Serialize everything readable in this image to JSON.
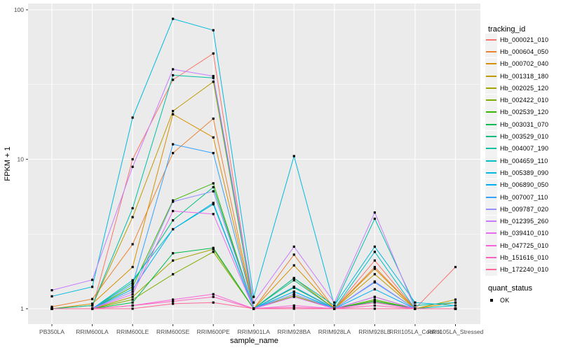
{
  "chart_data": {
    "type": "line",
    "title": "",
    "xlabel": "sample_name",
    "ylabel": "FPKM + 1",
    "y_scale": "log10",
    "ylim": [
      0.9,
      110
    ],
    "yticks": [
      1,
      10,
      100
    ],
    "ytick_labels": [
      "1",
      "10",
      "100"
    ],
    "grid": "white major+minor gridlines on gray panel",
    "legend_position": "right",
    "panel_bg": "#EBEBEB",
    "gridline_color": "#FFFFFF",
    "axis_text_color": "#4D4D4D",
    "point_marker": "black-square",
    "categories": [
      "PB350LA",
      "RRIM600LA",
      "RRIM600LE",
      "RRIM600SE",
      "RRIM600PE",
      "RRIM901LA",
      "RRIM928BA",
      "RRIM928LA",
      "RRIM928LB",
      "RRII105LA_Control",
      "RRII105LA_Stressed"
    ],
    "series": [
      {
        "name": "Hb_000021_010",
        "color": "#F8766D",
        "values": [
          1.0,
          1.0,
          10.0,
          34,
          51,
          1.0,
          1.6,
          1.0,
          2.1,
          1.0,
          1.9
        ]
      },
      {
        "name": "Hb_000604_050",
        "color": "#EA8331",
        "values": [
          1.03,
          1.16,
          2.7,
          11,
          18.7,
          1.0,
          2.3,
          1.0,
          1.9,
          1.0,
          1.0
        ]
      },
      {
        "name": "Hb_000702_040",
        "color": "#D89000",
        "values": [
          1.0,
          1.08,
          1.9,
          20,
          14,
          1.0,
          1.95,
          1.0,
          1.85,
          1.0,
          1.1
        ]
      },
      {
        "name": "Hb_001318_180",
        "color": "#C09B00",
        "values": [
          1.0,
          1.05,
          4.1,
          21,
          33,
          1.0,
          1.6,
          1.0,
          1.7,
          1.0,
          1.15
        ]
      },
      {
        "name": "Hb_002025_120",
        "color": "#A3A500",
        "values": [
          1.0,
          1.0,
          1.2,
          2.1,
          2.5,
          1.0,
          1.25,
          1.0,
          1.13,
          1.0,
          1.0
        ]
      },
      {
        "name": "Hb_002422_010",
        "color": "#7CAE00",
        "values": [
          1.0,
          1.0,
          1.15,
          1.7,
          2.4,
          1.0,
          1.22,
          1.0,
          1.1,
          1.0,
          1.0
        ]
      },
      {
        "name": "Hb_002539_120",
        "color": "#39B600",
        "values": [
          1.0,
          1.0,
          1.4,
          5.3,
          6.9,
          1.0,
          1.4,
          1.0,
          1.15,
          1.0,
          1.0
        ]
      },
      {
        "name": "Hb_003031_070",
        "color": "#00BB4E",
        "values": [
          1.0,
          1.0,
          1.1,
          2.35,
          2.55,
          1.0,
          1.38,
          1.0,
          1.12,
          1.0,
          1.0
        ]
      },
      {
        "name": "Hb_003529_010",
        "color": "#00BF7D",
        "values": [
          1.0,
          1.0,
          1.5,
          3.9,
          6.5,
          1.0,
          1.55,
          1.0,
          1.2,
          1.0,
          1.0
        ]
      },
      {
        "name": "Hb_004007_190",
        "color": "#00C1A3",
        "values": [
          1.0,
          1.05,
          4.7,
          36.5,
          35,
          1.0,
          1.6,
          1.05,
          4.0,
          1.05,
          1.1
        ]
      },
      {
        "name": "Hb_004659_110",
        "color": "#00BFC4",
        "values": [
          1.0,
          1.0,
          1.55,
          3.4,
          5.0,
          1.0,
          1.3,
          1.0,
          2.4,
          1.0,
          1.05
        ]
      },
      {
        "name": "Hb_005389_090",
        "color": "#00BAE0",
        "values": [
          1.21,
          1.4,
          19,
          87,
          73,
          1.2,
          10.5,
          1.05,
          2.6,
          1.1,
          1.05
        ]
      },
      {
        "name": "Hb_006890_050",
        "color": "#00B0F6",
        "values": [
          1.0,
          1.0,
          1.35,
          3.4,
          5.1,
          1.0,
          1.3,
          1.0,
          1.35,
          1.0,
          1.0
        ]
      },
      {
        "name": "Hb_007007_110",
        "color": "#35A2FF",
        "values": [
          1.0,
          1.0,
          1.45,
          12.6,
          11,
          1.0,
          1.4,
          1.0,
          1.5,
          1.0,
          1.0
        ]
      },
      {
        "name": "Hb_009787_020",
        "color": "#9590FF",
        "values": [
          1.0,
          1.0,
          1.3,
          5.2,
          6.1,
          1.0,
          1.25,
          1.0,
          1.52,
          1.0,
          1.0
        ]
      },
      {
        "name": "Hb_012395_260",
        "color": "#C77CFF",
        "values": [
          1.33,
          1.56,
          8.9,
          40,
          36,
          1.1,
          2.6,
          1.1,
          4.4,
          1.0,
          1.0
        ]
      },
      {
        "name": "Hb_039410_010",
        "color": "#E76BF3",
        "values": [
          1.0,
          1.0,
          1.25,
          4.5,
          4.3,
          1.0,
          1.2,
          1.0,
          1.2,
          1.0,
          1.0
        ]
      },
      {
        "name": "Hb_047725_010",
        "color": "#FA62DB",
        "values": [
          1.0,
          1.0,
          1.05,
          1.15,
          1.25,
          1.0,
          1.05,
          1.0,
          1.1,
          1.0,
          1.0
        ]
      },
      {
        "name": "Hb_151616_010",
        "color": "#FF62BC",
        "values": [
          1.0,
          1.0,
          1.05,
          1.12,
          1.2,
          1.0,
          1.02,
          1.0,
          1.05,
          1.0,
          1.0
        ]
      },
      {
        "name": "Hb_172240_010",
        "color": "#FF6A98",
        "values": [
          1.0,
          1.0,
          1.0,
          1.08,
          1.1,
          1.0,
          1.0,
          1.0,
          1.0,
          1.0,
          1.0
        ]
      }
    ],
    "legends": {
      "tracking_id_title": "tracking_id",
      "quant_status_title": "quant_status",
      "quant_status_items": [
        {
          "label": "OK",
          "marker": "black-square"
        }
      ]
    }
  }
}
